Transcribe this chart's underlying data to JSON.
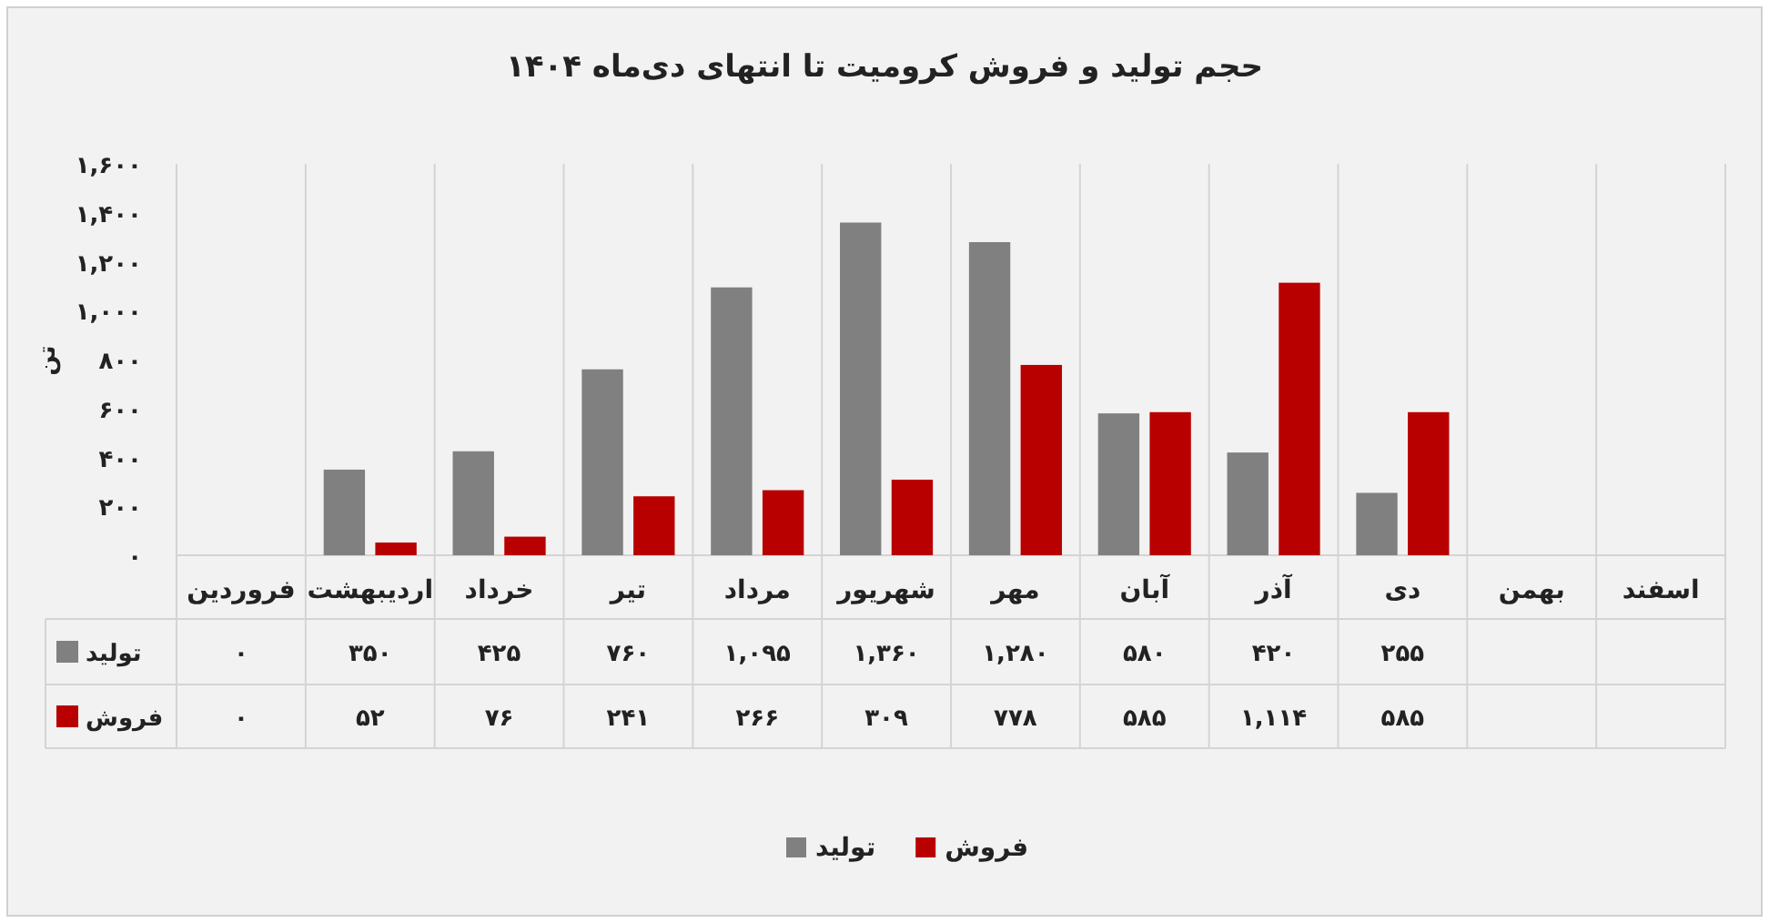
{
  "chart_data": {
    "type": "bar",
    "title": "حجم تولید و فروش کرومیت تا انتهای دی‌ماه ۱۴۰۴",
    "ylabel": "تن",
    "categories": [
      "فروردین",
      "اردیبهشت",
      "خرداد",
      "تیر",
      "مرداد",
      "شهریور",
      "مهر",
      "آبان",
      "آذر",
      "دی",
      "بهمن",
      "اسفند"
    ],
    "series": [
      {
        "name": "تولید",
        "color": "#808080",
        "values": [
          0,
          350,
          425,
          760,
          1095,
          1360,
          1280,
          580,
          420,
          255,
          null,
          null
        ],
        "value_labels": [
          "۰",
          "۳۵۰",
          "۴۲۵",
          "۷۶۰",
          "۱,۰۹۵",
          "۱,۳۶۰",
          "۱,۲۸۰",
          "۵۸۰",
          "۴۲۰",
          "۲۵۵",
          null,
          null
        ]
      },
      {
        "name": "فروش",
        "color": "#b80000",
        "values": [
          0,
          52,
          76,
          241,
          266,
          309,
          778,
          585,
          1114,
          585,
          null,
          null
        ],
        "value_labels": [
          "۰",
          "۵۲",
          "۷۶",
          "۲۴۱",
          "۲۶۶",
          "۳۰۹",
          "۷۷۸",
          "۵۸۵",
          "۱,۱۱۴",
          "۵۸۵",
          null,
          null
        ]
      }
    ],
    "ylim": [
      0,
      1600
    ],
    "yticks": [
      {
        "value": 0,
        "label": "۰"
      },
      {
        "value": 200,
        "label": "۲۰۰"
      },
      {
        "value": 400,
        "label": "۴۰۰"
      },
      {
        "value": 600,
        "label": "۶۰۰"
      },
      {
        "value": 800,
        "label": "۸۰۰"
      },
      {
        "value": 1000,
        "label": "۱,۰۰۰"
      },
      {
        "value": 1200,
        "label": "۱,۲۰۰"
      },
      {
        "value": 1400,
        "label": "۱,۴۰۰"
      },
      {
        "value": 1600,
        "label": "۱,۶۰۰"
      }
    ],
    "legend": "bottom"
  }
}
